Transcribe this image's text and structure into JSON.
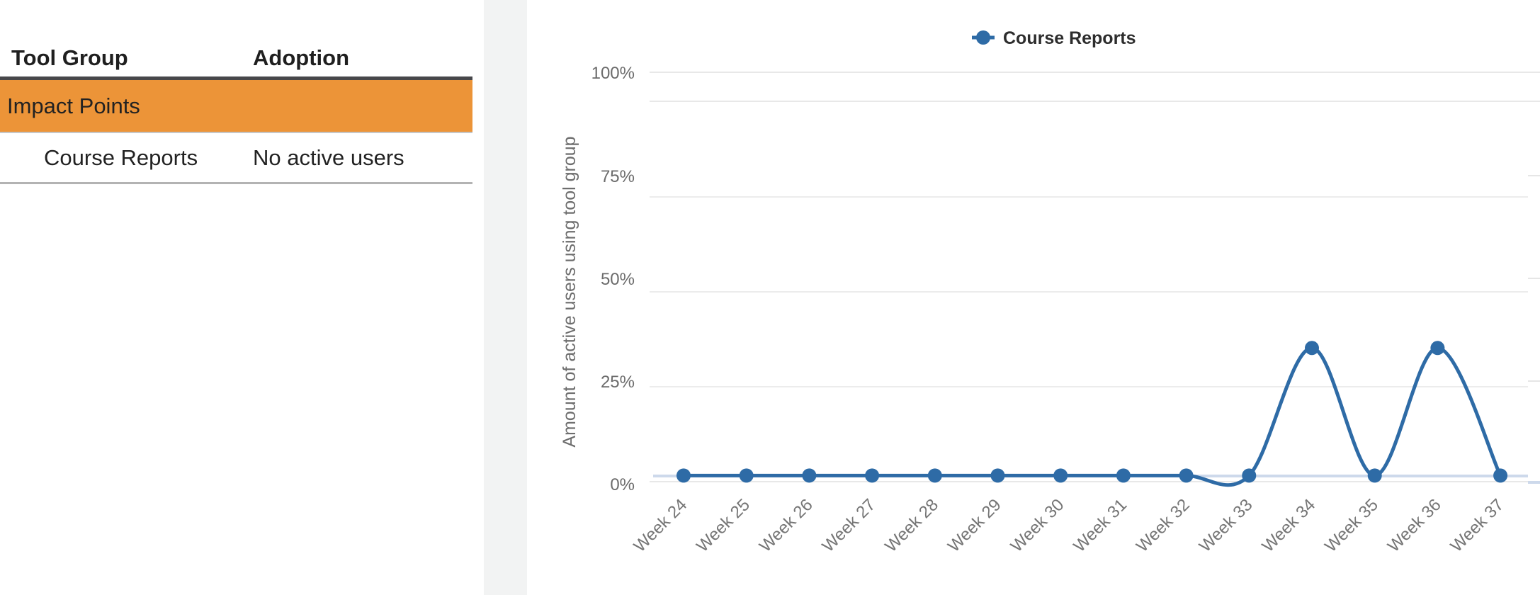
{
  "table": {
    "headers": [
      "Tool Group",
      "Adoption"
    ],
    "group_row": {
      "label": "Impact Points"
    },
    "rows": [
      {
        "tool": "Course Reports",
        "adoption": "No active users"
      }
    ]
  },
  "colors": {
    "selected_row_orange": "#ec9438",
    "series_blue": "#2e6ba6",
    "zero_baseline_blue": "#cdd9eb",
    "gridline_gray": "#e8e8e8"
  },
  "chart_data": {
    "type": "line",
    "title": "",
    "categories": [
      "Week 24",
      "Week 25",
      "Week 26",
      "Week 27",
      "Week 28",
      "Week 29",
      "Week 30",
      "Week 31",
      "Week 32",
      "Week 33",
      "Week 34",
      "Week 35",
      "Week 36",
      "Week 37"
    ],
    "series": [
      {
        "name": "Course Reports",
        "values": [
          2,
          2,
          2,
          2,
          2,
          2,
          2,
          2,
          2,
          2,
          33,
          2,
          33,
          2
        ]
      }
    ],
    "xlabel": "",
    "ylabel": "Amount of active users using tool group",
    "ylim": [
      0,
      100
    ],
    "yticks": [
      100,
      75,
      50,
      25,
      0
    ],
    "ytick_suffix": "%",
    "grid": true,
    "legend_position": "top-center",
    "marker": "circle"
  }
}
